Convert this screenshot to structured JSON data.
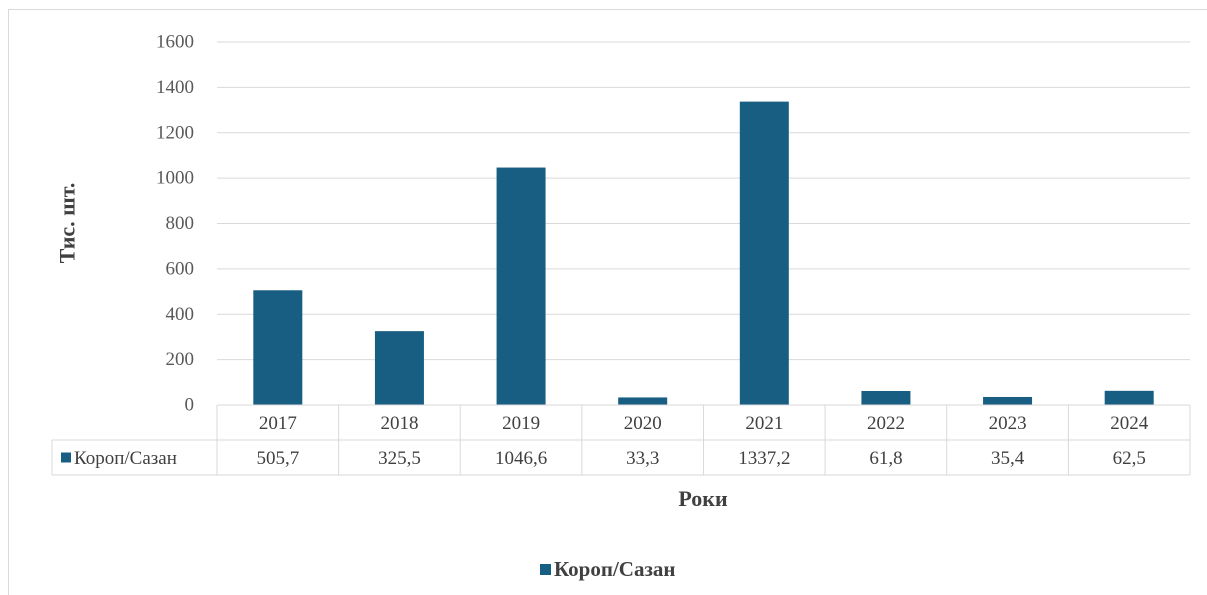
{
  "chart_data": {
    "type": "bar",
    "categories": [
      "2017",
      "2018",
      "2019",
      "2020",
      "2021",
      "2022",
      "2023",
      "2024"
    ],
    "series": [
      {
        "name": "Короп/Сазан",
        "values": [
          505.7,
          325.5,
          1046.6,
          33.3,
          1337.2,
          61.8,
          35.4,
          62.5
        ],
        "value_labels": [
          "505,7",
          "325,5",
          "1046,6",
          "33,3",
          "1337,2",
          "61,8",
          "35,4",
          "62,5"
        ]
      }
    ],
    "title": "",
    "xlabel": "Роки",
    "ylabel": "Тис. шт.",
    "ylim": [
      0,
      1600
    ],
    "yticks": [
      "0",
      "200",
      "400",
      "600",
      "800",
      "1000",
      "1200",
      "1400",
      "1600"
    ],
    "grid": true,
    "data_table": true,
    "legend": "bottom-center",
    "bar_color": "#175e82"
  }
}
